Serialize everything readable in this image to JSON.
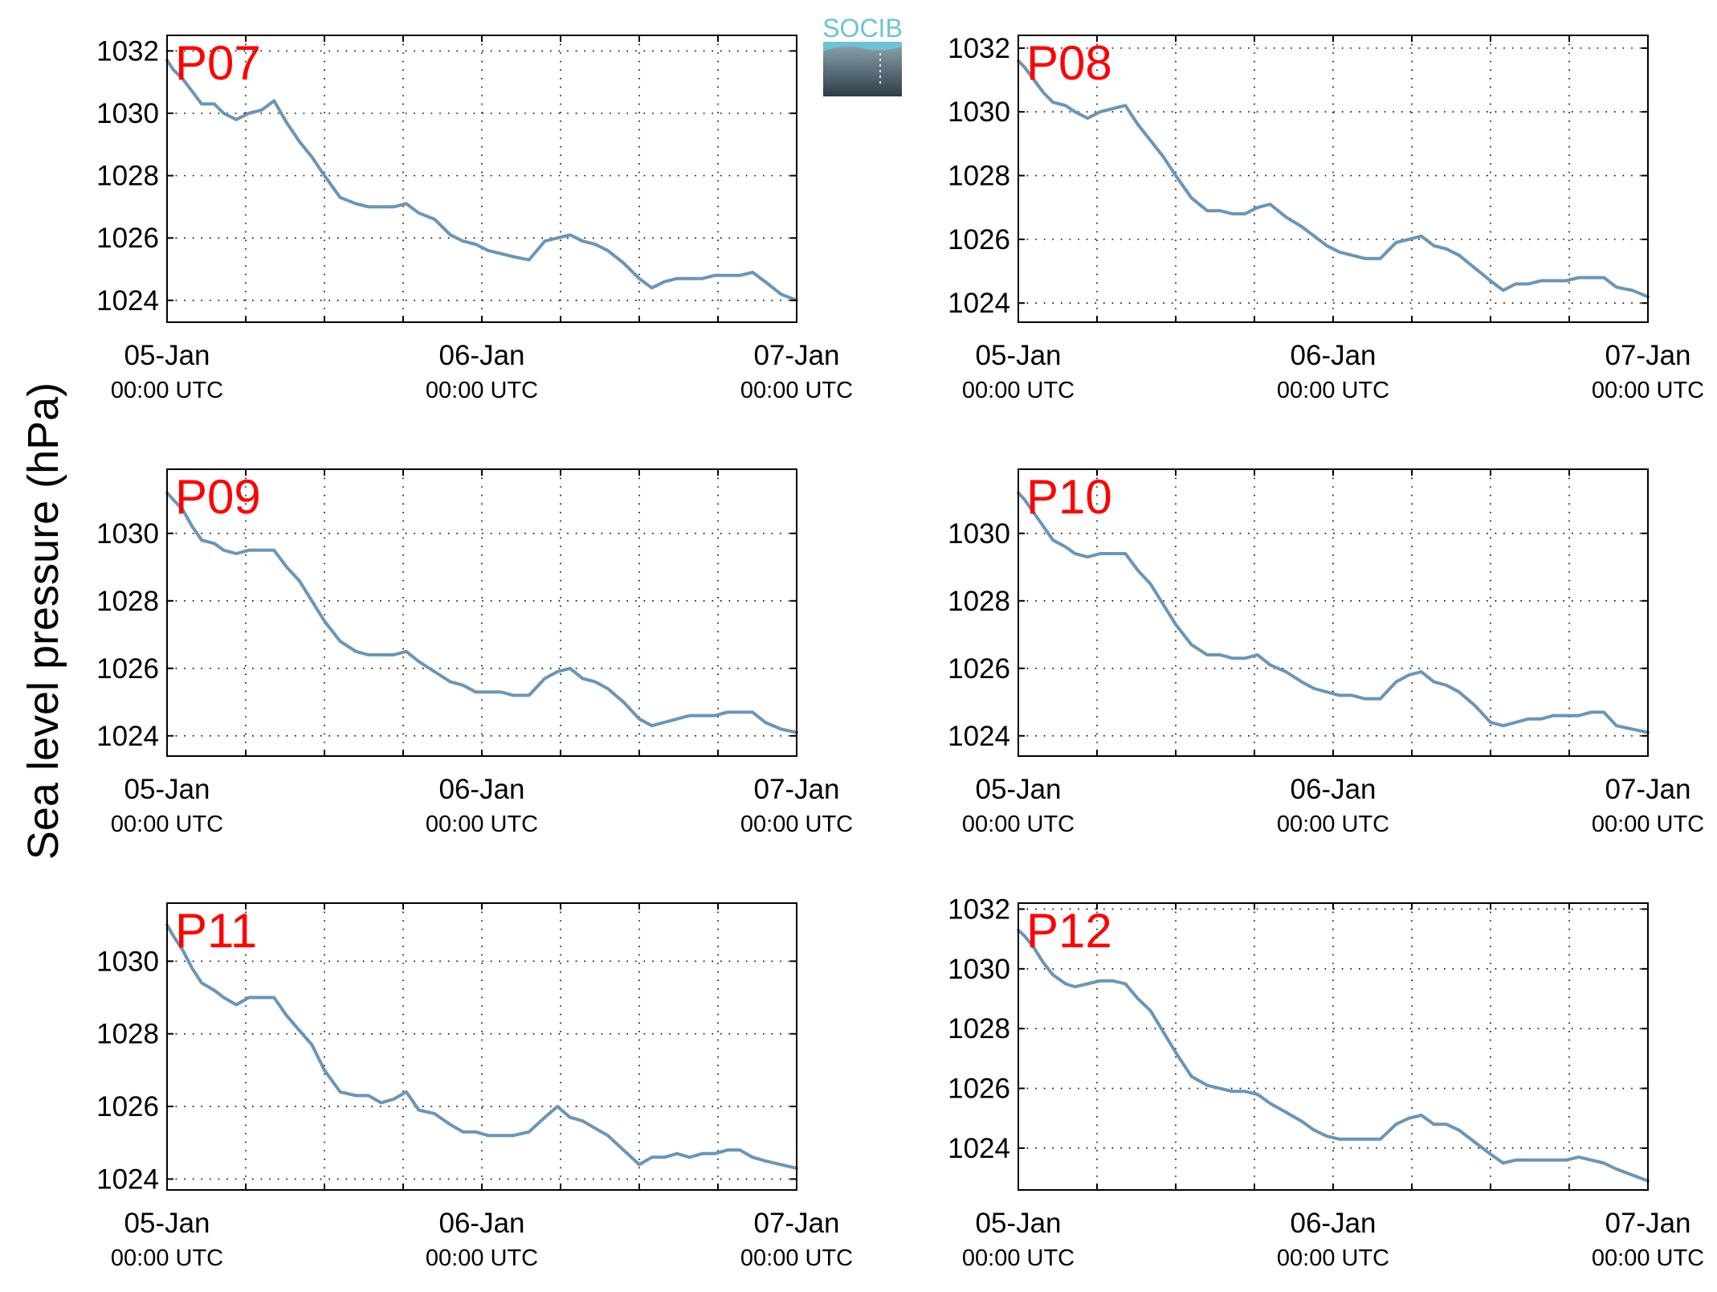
{
  "figure": {
    "ylabel": "Sea level pressure (hPa)",
    "logo_text": "SOCIB"
  },
  "colors": {
    "line": "#6a95b8",
    "title": "#ff0000",
    "axes": "#000000",
    "grid": "#000000",
    "logo_top": "#6cc3d3",
    "logo_bottom": "#2e3d48"
  },
  "chart_data": [
    {
      "type": "line",
      "title": "P07",
      "xlabel": "",
      "ylabel": "",
      "x_ticks": [
        {
          "day": 0,
          "date": "05-Jan",
          "time": "00:00 UTC"
        },
        {
          "day": 1,
          "date": "06-Jan",
          "time": "00:00 UTC"
        },
        {
          "day": 2,
          "date": "07-Jan",
          "time": "00:00 UTC"
        }
      ],
      "xlim": [
        0,
        2
      ],
      "ylim": [
        1023.3,
        1032.5
      ],
      "yticks": [
        1024,
        1026,
        1028,
        1030,
        1032
      ],
      "grid": true,
      "x": [
        0,
        0.02,
        0.05,
        0.08,
        0.11,
        0.15,
        0.18,
        0.22,
        0.26,
        0.3,
        0.34,
        0.38,
        0.42,
        0.46,
        0.5,
        0.55,
        0.6,
        0.64,
        0.68,
        0.72,
        0.76,
        0.8,
        0.85,
        0.9,
        0.94,
        0.98,
        1.02,
        1.06,
        1.1,
        1.15,
        1.2,
        1.24,
        1.28,
        1.32,
        1.36,
        1.4,
        1.45,
        1.5,
        1.54,
        1.58,
        1.62,
        1.66,
        1.7,
        1.74,
        1.78,
        1.82,
        1.86,
        1.9,
        1.95,
        2.0
      ],
      "y": [
        1031.7,
        1031.4,
        1031.1,
        1030.7,
        1030.3,
        1030.3,
        1030.0,
        1029.8,
        1030.0,
        1030.1,
        1030.4,
        1029.7,
        1029.1,
        1028.6,
        1028.0,
        1027.3,
        1027.1,
        1027.0,
        1027.0,
        1027.0,
        1027.1,
        1026.8,
        1026.6,
        1026.1,
        1025.9,
        1025.8,
        1025.6,
        1025.5,
        1025.4,
        1025.3,
        1025.9,
        1026.0,
        1026.1,
        1025.9,
        1025.8,
        1025.6,
        1025.2,
        1024.7,
        1024.4,
        1024.6,
        1024.7,
        1024.7,
        1024.7,
        1024.8,
        1024.8,
        1024.8,
        1024.9,
        1024.6,
        1024.2,
        1024.0
      ]
    },
    {
      "type": "line",
      "title": "P08",
      "xlabel": "",
      "ylabel": "",
      "x_ticks": [
        {
          "day": 0,
          "date": "05-Jan",
          "time": "00:00 UTC"
        },
        {
          "day": 1,
          "date": "06-Jan",
          "time": "00:00 UTC"
        },
        {
          "day": 2,
          "date": "07-Jan",
          "time": "00:00 UTC"
        }
      ],
      "xlim": [
        0,
        2
      ],
      "ylim": [
        1023.4,
        1032.4
      ],
      "yticks": [
        1024,
        1026,
        1028,
        1030,
        1032
      ],
      "grid": true,
      "x": [
        0,
        0.02,
        0.05,
        0.08,
        0.11,
        0.15,
        0.18,
        0.22,
        0.26,
        0.3,
        0.34,
        0.38,
        0.42,
        0.46,
        0.5,
        0.55,
        0.6,
        0.64,
        0.68,
        0.72,
        0.76,
        0.8,
        0.85,
        0.9,
        0.94,
        0.98,
        1.02,
        1.06,
        1.1,
        1.15,
        1.2,
        1.24,
        1.28,
        1.32,
        1.36,
        1.4,
        1.45,
        1.5,
        1.54,
        1.58,
        1.62,
        1.66,
        1.7,
        1.74,
        1.78,
        1.82,
        1.86,
        1.9,
        1.95,
        2.0
      ],
      "y": [
        1031.6,
        1031.4,
        1031.0,
        1030.6,
        1030.3,
        1030.2,
        1030.0,
        1029.8,
        1030.0,
        1030.1,
        1030.2,
        1029.6,
        1029.1,
        1028.6,
        1028.0,
        1027.3,
        1026.9,
        1026.9,
        1026.8,
        1026.8,
        1027.0,
        1027.1,
        1026.7,
        1026.4,
        1026.1,
        1025.8,
        1025.6,
        1025.5,
        1025.4,
        1025.4,
        1025.9,
        1026.0,
        1026.1,
        1025.8,
        1025.7,
        1025.5,
        1025.1,
        1024.7,
        1024.4,
        1024.6,
        1024.6,
        1024.7,
        1024.7,
        1024.7,
        1024.8,
        1024.8,
        1024.8,
        1024.5,
        1024.4,
        1024.2
      ]
    },
    {
      "type": "line",
      "title": "P09",
      "xlabel": "",
      "ylabel": "",
      "x_ticks": [
        {
          "day": 0,
          "date": "05-Jan",
          "time": "00:00 UTC"
        },
        {
          "day": 1,
          "date": "06-Jan",
          "time": "00:00 UTC"
        },
        {
          "day": 2,
          "date": "07-Jan",
          "time": "00:00 UTC"
        }
      ],
      "xlim": [
        0,
        2
      ],
      "ylim": [
        1023.4,
        1031.9
      ],
      "yticks": [
        1024,
        1026,
        1028,
        1030
      ],
      "grid": true,
      "x": [
        0,
        0.02,
        0.05,
        0.08,
        0.11,
        0.15,
        0.18,
        0.22,
        0.26,
        0.3,
        0.34,
        0.38,
        0.42,
        0.46,
        0.5,
        0.55,
        0.6,
        0.64,
        0.68,
        0.72,
        0.76,
        0.8,
        0.85,
        0.9,
        0.94,
        0.98,
        1.02,
        1.06,
        1.1,
        1.15,
        1.2,
        1.24,
        1.28,
        1.32,
        1.36,
        1.4,
        1.45,
        1.5,
        1.54,
        1.58,
        1.62,
        1.66,
        1.7,
        1.74,
        1.78,
        1.82,
        1.86,
        1.9,
        1.95,
        2.0
      ],
      "y": [
        1031.2,
        1031.0,
        1030.7,
        1030.2,
        1029.8,
        1029.7,
        1029.5,
        1029.4,
        1029.5,
        1029.5,
        1029.5,
        1029.0,
        1028.6,
        1028.0,
        1027.4,
        1026.8,
        1026.5,
        1026.4,
        1026.4,
        1026.4,
        1026.5,
        1026.2,
        1025.9,
        1025.6,
        1025.5,
        1025.3,
        1025.3,
        1025.3,
        1025.2,
        1025.2,
        1025.7,
        1025.9,
        1026.0,
        1025.7,
        1025.6,
        1025.4,
        1025.0,
        1024.5,
        1024.3,
        1024.4,
        1024.5,
        1024.6,
        1024.6,
        1024.6,
        1024.7,
        1024.7,
        1024.7,
        1024.4,
        1024.2,
        1024.1
      ]
    },
    {
      "type": "line",
      "title": "P10",
      "xlabel": "",
      "ylabel": "",
      "x_ticks": [
        {
          "day": 0,
          "date": "05-Jan",
          "time": "00:00 UTC"
        },
        {
          "day": 1,
          "date": "06-Jan",
          "time": "00:00 UTC"
        },
        {
          "day": 2,
          "date": "07-Jan",
          "time": "00:00 UTC"
        }
      ],
      "xlim": [
        0,
        2
      ],
      "ylim": [
        1023.4,
        1031.9
      ],
      "yticks": [
        1024,
        1026,
        1028,
        1030
      ],
      "grid": true,
      "x": [
        0,
        0.02,
        0.05,
        0.08,
        0.11,
        0.15,
        0.18,
        0.22,
        0.26,
        0.3,
        0.34,
        0.38,
        0.42,
        0.46,
        0.5,
        0.55,
        0.6,
        0.64,
        0.68,
        0.72,
        0.76,
        0.8,
        0.85,
        0.9,
        0.94,
        0.98,
        1.02,
        1.06,
        1.1,
        1.15,
        1.2,
        1.24,
        1.28,
        1.32,
        1.36,
        1.4,
        1.45,
        1.5,
        1.54,
        1.58,
        1.62,
        1.66,
        1.7,
        1.74,
        1.78,
        1.82,
        1.86,
        1.9,
        1.95,
        2.0
      ],
      "y": [
        1031.2,
        1031.0,
        1030.6,
        1030.2,
        1029.8,
        1029.6,
        1029.4,
        1029.3,
        1029.4,
        1029.4,
        1029.4,
        1028.9,
        1028.5,
        1027.9,
        1027.3,
        1026.7,
        1026.4,
        1026.4,
        1026.3,
        1026.3,
        1026.4,
        1026.1,
        1025.9,
        1025.6,
        1025.4,
        1025.3,
        1025.2,
        1025.2,
        1025.1,
        1025.1,
        1025.6,
        1025.8,
        1025.9,
        1025.6,
        1025.5,
        1025.3,
        1024.9,
        1024.4,
        1024.3,
        1024.4,
        1024.5,
        1024.5,
        1024.6,
        1024.6,
        1024.6,
        1024.7,
        1024.7,
        1024.3,
        1024.2,
        1024.1
      ]
    },
    {
      "type": "line",
      "title": "P11",
      "xlabel": "",
      "ylabel": "",
      "x_ticks": [
        {
          "day": 0,
          "date": "05-Jan",
          "time": "00:00 UTC"
        },
        {
          "day": 1,
          "date": "06-Jan",
          "time": "00:00 UTC"
        },
        {
          "day": 2,
          "date": "07-Jan",
          "time": "00:00 UTC"
        }
      ],
      "xlim": [
        0,
        2
      ],
      "ylim": [
        1023.7,
        1031.6
      ],
      "yticks": [
        1024,
        1026,
        1028,
        1030
      ],
      "grid": true,
      "x": [
        0,
        0.02,
        0.05,
        0.08,
        0.11,
        0.15,
        0.18,
        0.22,
        0.26,
        0.3,
        0.34,
        0.38,
        0.42,
        0.46,
        0.5,
        0.55,
        0.6,
        0.64,
        0.68,
        0.72,
        0.76,
        0.8,
        0.85,
        0.9,
        0.94,
        0.98,
        1.02,
        1.06,
        1.1,
        1.15,
        1.2,
        1.24,
        1.28,
        1.32,
        1.36,
        1.4,
        1.45,
        1.5,
        1.54,
        1.58,
        1.62,
        1.66,
        1.7,
        1.74,
        1.78,
        1.82,
        1.86,
        1.9,
        1.95,
        2.0
      ],
      "y": [
        1031.0,
        1030.7,
        1030.3,
        1029.8,
        1029.4,
        1029.2,
        1029.0,
        1028.8,
        1029.0,
        1029.0,
        1029.0,
        1028.5,
        1028.1,
        1027.7,
        1027.0,
        1026.4,
        1026.3,
        1026.3,
        1026.1,
        1026.2,
        1026.4,
        1025.9,
        1025.8,
        1025.5,
        1025.3,
        1025.3,
        1025.2,
        1025.2,
        1025.2,
        1025.3,
        1025.7,
        1026.0,
        1025.7,
        1025.6,
        1025.4,
        1025.2,
        1024.8,
        1024.4,
        1024.6,
        1024.6,
        1024.7,
        1024.6,
        1024.7,
        1024.7,
        1024.8,
        1024.8,
        1024.6,
        1024.5,
        1024.4,
        1024.3
      ]
    },
    {
      "type": "line",
      "title": "P12",
      "xlabel": "",
      "ylabel": "",
      "x_ticks": [
        {
          "day": 0,
          "date": "05-Jan",
          "time": "00:00 UTC"
        },
        {
          "day": 1,
          "date": "06-Jan",
          "time": "00:00 UTC"
        },
        {
          "day": 2,
          "date": "07-Jan",
          "time": "00:00 UTC"
        }
      ],
      "xlim": [
        0,
        2
      ],
      "ylim": [
        1022.6,
        1032.2
      ],
      "yticks": [
        1024,
        1026,
        1028,
        1030,
        1032
      ],
      "grid": true,
      "x": [
        0,
        0.02,
        0.05,
        0.08,
        0.11,
        0.15,
        0.18,
        0.22,
        0.26,
        0.3,
        0.34,
        0.38,
        0.42,
        0.46,
        0.5,
        0.55,
        0.6,
        0.64,
        0.68,
        0.72,
        0.76,
        0.8,
        0.85,
        0.9,
        0.94,
        0.98,
        1.02,
        1.06,
        1.1,
        1.15,
        1.2,
        1.24,
        1.28,
        1.32,
        1.36,
        1.4,
        1.45,
        1.5,
        1.54,
        1.58,
        1.62,
        1.66,
        1.7,
        1.74,
        1.78,
        1.82,
        1.86,
        1.9,
        1.95,
        2.0
      ],
      "y": [
        1031.3,
        1031.1,
        1030.7,
        1030.2,
        1029.8,
        1029.5,
        1029.4,
        1029.5,
        1029.6,
        1029.6,
        1029.5,
        1029.0,
        1028.6,
        1027.9,
        1027.2,
        1026.4,
        1026.1,
        1026.0,
        1025.9,
        1025.9,
        1025.8,
        1025.5,
        1025.2,
        1024.9,
        1024.6,
        1024.4,
        1024.3,
        1024.3,
        1024.3,
        1024.3,
        1024.8,
        1025.0,
        1025.1,
        1024.8,
        1024.8,
        1024.6,
        1024.2,
        1023.8,
        1023.5,
        1023.6,
        1023.6,
        1023.6,
        1023.6,
        1023.6,
        1023.7,
        1023.6,
        1023.5,
        1023.3,
        1023.1,
        1022.9
      ]
    }
  ]
}
